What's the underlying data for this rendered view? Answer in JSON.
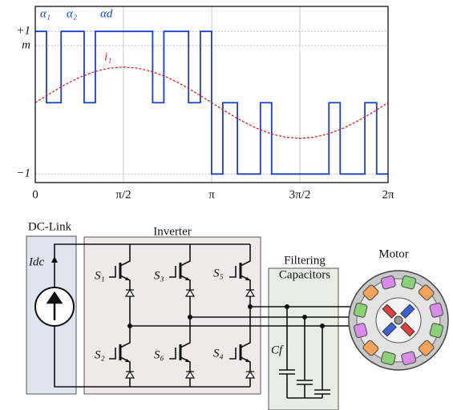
{
  "chart_data": {
    "type": "line",
    "xlim": [
      0,
      6.283
    ],
    "ylim": [
      -1.12,
      1.35
    ],
    "xticks": [
      0,
      {
        "value": 1.571,
        "label": "π/2"
      },
      {
        "value": 3.142,
        "label": "π"
      },
      {
        "value": 4.712,
        "label": "3π/2"
      },
      {
        "value": 6.283,
        "label": "2π"
      }
    ],
    "yticks": [
      {
        "value": 1,
        "label": "+1"
      },
      {
        "value": 0.8,
        "label": "m"
      },
      {
        "value": -1,
        "label": "−1"
      }
    ],
    "grid": true,
    "annotations": [
      "α₁",
      "α₂",
      "αd"
    ],
    "series": [
      {
        "color": "#1a3fd0",
        "step": true,
        "x": [
          0,
          0.2,
          0.2,
          0.46,
          0.46,
          0.87,
          0.87,
          1.07,
          1.07,
          2.09,
          2.09,
          2.29,
          2.29,
          2.73,
          2.73,
          2.94,
          2.94,
          3.14,
          3.14,
          3.34,
          3.34,
          3.6,
          3.6,
          4.01,
          4.01,
          4.21,
          4.21,
          5.23,
          5.23,
          5.43,
          5.43,
          5.87,
          5.87,
          6.08,
          6.08,
          6.28
        ],
        "values": [
          1,
          1,
          0,
          0,
          1,
          1,
          0,
          0,
          1,
          1,
          0,
          0,
          1,
          1,
          0,
          0,
          1,
          1,
          -1,
          -1,
          0,
          0,
          -1,
          -1,
          0,
          0,
          -1,
          -1,
          0,
          0,
          -1,
          -1,
          0,
          0,
          -1,
          -1
        ]
      },
      {
        "name": "i₁",
        "color": "#e0201a",
        "dashed": true,
        "x": [
          0,
          0.262,
          0.524,
          0.785,
          1.047,
          1.309,
          1.571,
          1.833,
          2.094,
          2.356,
          2.618,
          2.88,
          3.142,
          3.403,
          3.665,
          3.927,
          4.189,
          4.451,
          4.712,
          4.974,
          5.236,
          5.498,
          5.76,
          6.021,
          6.283
        ],
        "values": [
          0,
          0.129,
          0.25,
          0.354,
          0.433,
          0.483,
          0.5,
          0.483,
          0.433,
          0.354,
          0.25,
          0.129,
          0,
          -0.129,
          -0.25,
          -0.354,
          -0.433,
          -0.483,
          -0.5,
          -0.483,
          -0.433,
          -0.354,
          -0.25,
          -0.129,
          0
        ]
      }
    ]
  },
  "diagram": {
    "dc_link": {
      "label": "DC-Link",
      "current": "Idc"
    },
    "inverter": {
      "label": "Inverter",
      "switches": [
        "S₁",
        "S₃",
        "S₅",
        "S₂",
        "S₆",
        "S₄"
      ]
    },
    "filter": {
      "label": [
        "Filtering",
        "Capacitors"
      ],
      "capacitor": "Cf"
    },
    "motor": {
      "label": "Motor"
    }
  }
}
